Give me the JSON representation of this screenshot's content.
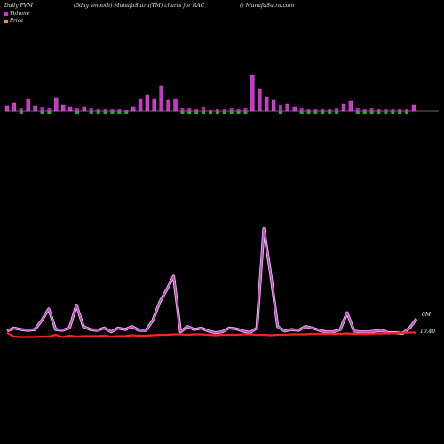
{
  "header": {
    "left": "Daily PVM",
    "middle": "(5day smooth) MunafaSutra(TM) charts for RAC",
    "right": "() MunafaSutra.com"
  },
  "legend": {
    "volume_label": "Volume",
    "price_label": "Price"
  },
  "colors": {
    "background": "#000000",
    "up_bar": "#cc33cc",
    "down_bar_marker": "#33aa33",
    "volume_line": "#cc44cc",
    "volume_line_glow": "#ffffff",
    "price_line": "#ff2222",
    "baseline": "#cccccc"
  },
  "end_labels": {
    "volume": "0M",
    "price": "10.40"
  },
  "chart_data": {
    "type": "bar",
    "title": "(5day smooth) MunafaSutra(TM) charts for RAC",
    "bars": {
      "up": [
        1,
        1,
        0,
        1,
        1,
        0,
        0,
        1,
        1,
        1,
        0,
        1,
        0,
        0,
        0,
        0,
        0,
        0,
        1,
        1,
        1,
        1,
        1,
        1,
        1,
        0,
        0,
        0,
        0,
        0,
        0,
        0,
        0,
        0,
        0,
        1,
        1,
        1,
        1,
        0,
        1,
        1,
        0,
        0,
        0,
        0,
        0,
        0,
        1,
        1,
        0,
        0,
        0,
        0,
        0,
        0,
        0,
        0,
        1
      ],
      "values": [
        6,
        9,
        3,
        14,
        6,
        4,
        3,
        15,
        7,
        5,
        3,
        5,
        3,
        2,
        2,
        2,
        2,
        1,
        5,
        14,
        18,
        14,
        28,
        12,
        14,
        3,
        3,
        2,
        4,
        1,
        2,
        2,
        3,
        2,
        3,
        40,
        25,
        16,
        12,
        7,
        8,
        5,
        3,
        2,
        2,
        2,
        2,
        3,
        8,
        11,
        3,
        2,
        3,
        2,
        2,
        2,
        2,
        2,
        7
      ]
    },
    "volume_series": [
      6,
      10,
      8,
      7,
      8,
      20,
      35,
      8,
      7,
      10,
      40,
      12,
      8,
      7,
      10,
      5,
      10,
      8,
      12,
      7,
      7,
      20,
      44,
      60,
      78,
      5,
      12,
      8,
      10,
      6,
      4,
      5,
      10,
      9,
      6,
      4,
      10,
      140,
      80,
      12,
      6,
      8,
      7,
      12,
      10,
      7,
      5,
      5,
      8,
      30,
      6,
      5,
      5,
      6,
      7,
      4,
      4,
      3,
      10,
      22
    ],
    "price_series": [
      3.2,
      2.4,
      2.3,
      2.3,
      2.3,
      2.4,
      2.4,
      2.8,
      2.3,
      2.6,
      2.4,
      2.5,
      2.5,
      2.5,
      2.6,
      2.4,
      2.5,
      2.5,
      2.7,
      2.6,
      2.6,
      2.7,
      2.8,
      2.8,
      2.9,
      2.9,
      2.8,
      2.9,
      2.9,
      2.8,
      2.7,
      2.8,
      2.8,
      2.8,
      2.9,
      2.9,
      2.8,
      2.8,
      2.7,
      2.8,
      2.8,
      2.9,
      2.9,
      2.9,
      3.0,
      3.0,
      3.0,
      3.0,
      3.0,
      3.1,
      3.0,
      3.0,
      3.0,
      3.1,
      3.1,
      3.1,
      3.2,
      3.2,
      3.3,
      3.3
    ]
  }
}
